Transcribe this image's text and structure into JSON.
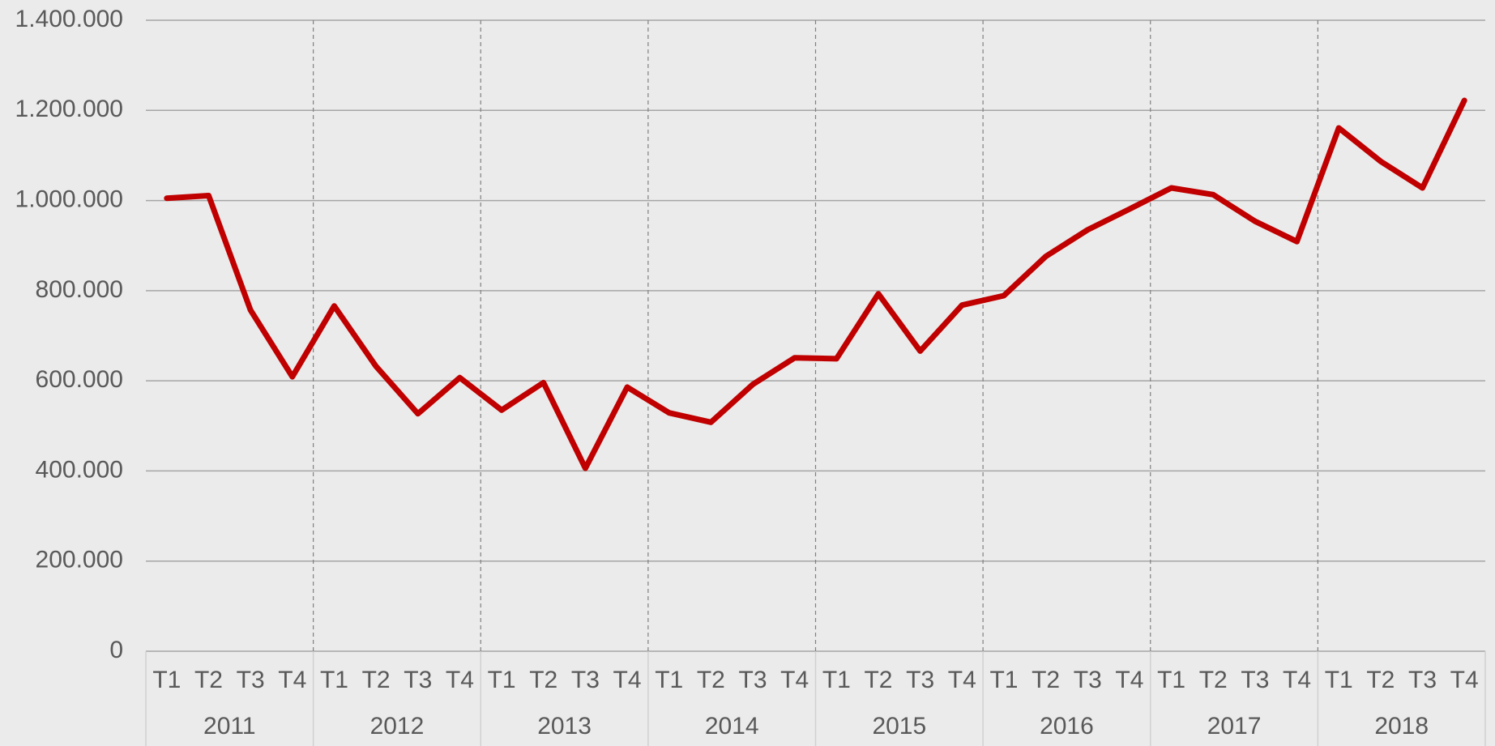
{
  "chart_data": {
    "type": "line",
    "categories": [
      "T1",
      "T2",
      "T3",
      "T4",
      "T1",
      "T2",
      "T3",
      "T4",
      "T1",
      "T2",
      "T3",
      "T4",
      "T1",
      "T2",
      "T3",
      "T4",
      "T1",
      "T2",
      "T3",
      "T4",
      "T1",
      "T2",
      "T3",
      "T4",
      "T1",
      "T2",
      "T3",
      "T4",
      "T1",
      "T2",
      "T3",
      "T4"
    ],
    "groups": [
      "2011",
      "2012",
      "2013",
      "2014",
      "2015",
      "2016",
      "2017",
      "2018"
    ],
    "values": [
      1005000,
      1011000,
      757000,
      609000,
      766000,
      632000,
      527000,
      607000,
      535000,
      596000,
      406000,
      586000,
      529000,
      508000,
      592000,
      651000,
      649000,
      793000,
      666000,
      768000,
      789000,
      876000,
      935000,
      981000,
      1028000,
      1013000,
      954000,
      909000,
      1161000,
      1087000,
      1028000,
      1222000
    ],
    "color": "#c00000",
    "ylim": [
      0,
      1400000
    ],
    "yticks": [
      0,
      {
        "value": 200000,
        "label": "200.000"
      },
      {
        "value": 400000,
        "label": "400.000"
      },
      {
        "value": 600000,
        "label": "600.000"
      },
      {
        "value": 800000,
        "label": "800.000"
      },
      {
        "value": 1000000,
        "label": "1.000.000"
      },
      {
        "value": 1200000,
        "label": "1.200.000"
      },
      {
        "value": 1400000,
        "label": "1.400.000"
      }
    ],
    "grid": true
  }
}
